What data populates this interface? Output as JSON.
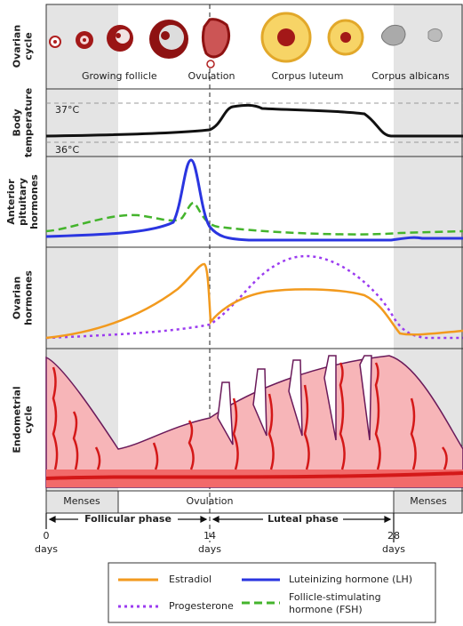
{
  "panels": [
    {
      "label": [
        "Ovarian",
        "cycle"
      ]
    },
    {
      "label": [
        "Body",
        "temperature"
      ]
    },
    {
      "label": [
        "Anterior",
        "pituitary",
        "hormones"
      ]
    },
    {
      "label": [
        "Ovarian",
        "hormones"
      ]
    },
    {
      "label": [
        "Endometrial",
        "cycle"
      ]
    }
  ],
  "ovarian_stages": [
    "Growing follicle",
    "Ovulation",
    "Corpus luteum",
    "Corpus albicans"
  ],
  "temperature_marks": [
    "37°C",
    "36°C"
  ],
  "menses": [
    "Menses",
    "Menses"
  ],
  "ovulation": "Ovulation",
  "phases": [
    "Follicular phase",
    "Luteal phase"
  ],
  "days": [
    {
      "number": "0",
      "unit": "days"
    },
    {
      "number": "14",
      "unit": "days"
    },
    {
      "number": "28",
      "unit": "days"
    }
  ],
  "legend": [
    {
      "label": [
        "Estradiol"
      ]
    },
    {
      "label": [
        "Luteinizing hormone (LH)"
      ]
    },
    {
      "label": [
        "Progesterone"
      ]
    },
    {
      "label": [
        "Follicle-stimulating",
        "hormone (FSH)"
      ]
    }
  ]
}
